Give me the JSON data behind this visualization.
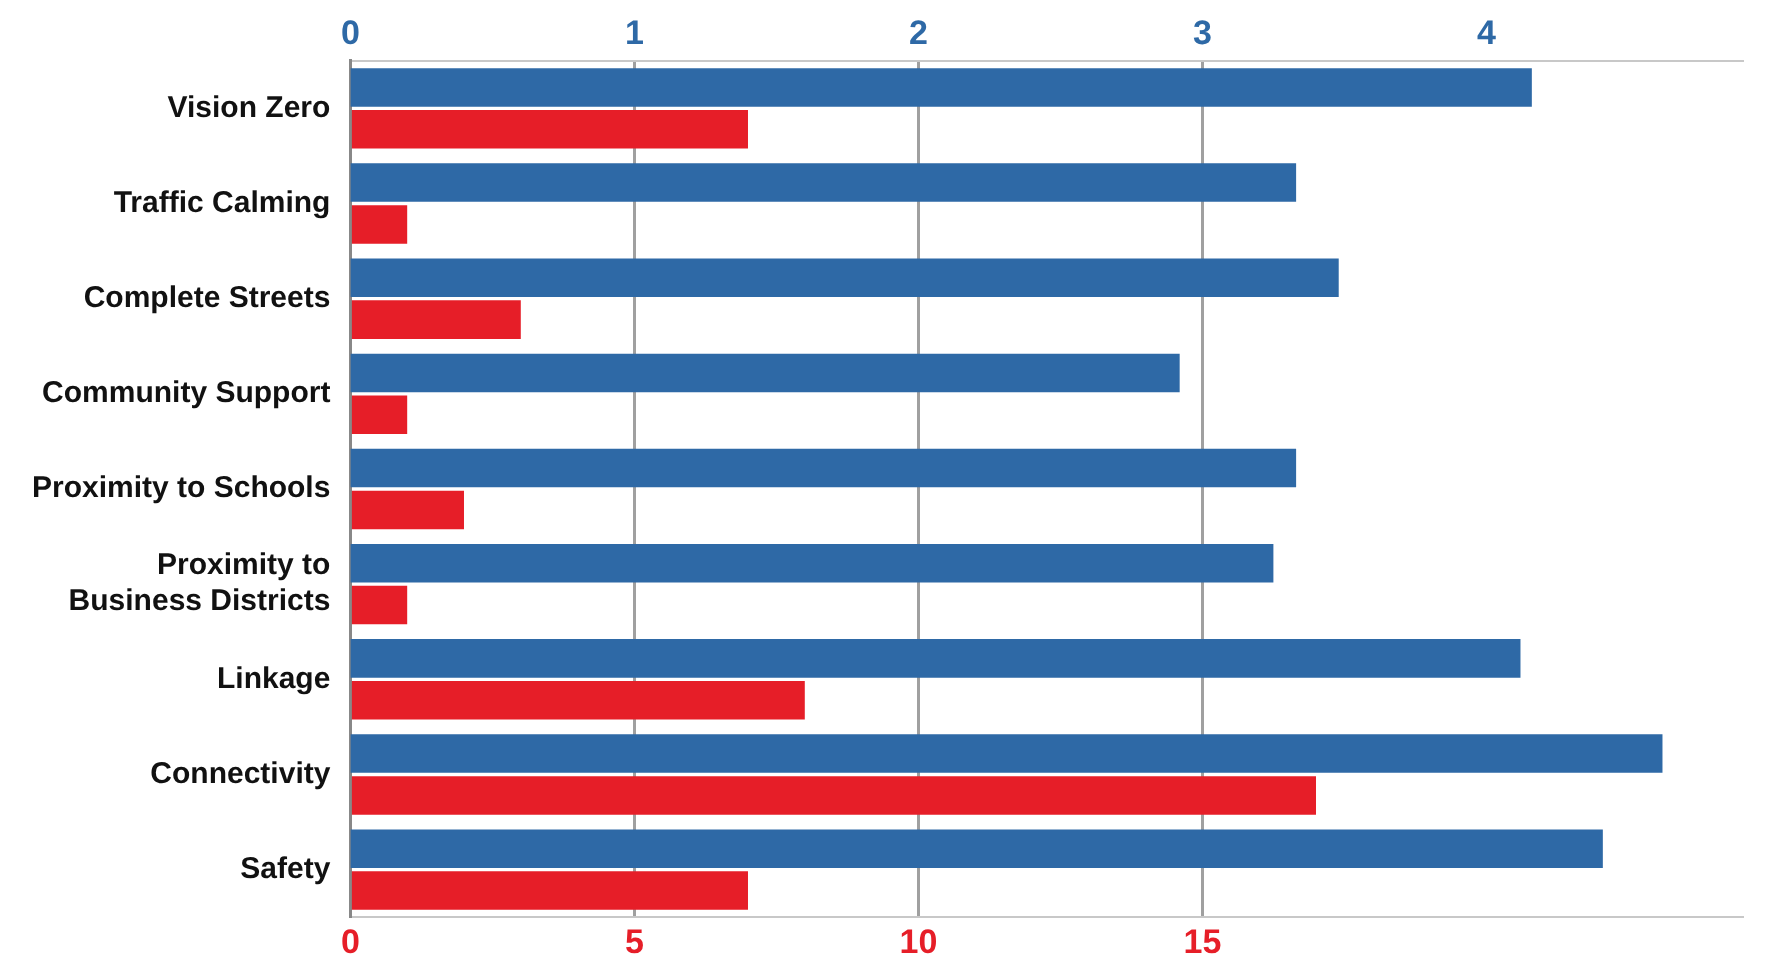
{
  "chart_data": {
    "type": "bar",
    "orientation": "horizontal",
    "categories": [
      "Vision Zero",
      "Traffic Calming",
      "Complete Streets",
      "Community Support",
      "Proximity to Schools",
      "Proximity to\nBusiness Districts",
      "Linkage",
      "Connectivity",
      "Safety"
    ],
    "series": [
      {
        "color": "#2e69a6",
        "axis": "x2",
        "values": [
          4.16,
          3.33,
          3.48,
          2.92,
          3.33,
          3.25,
          4.12,
          4.62,
          4.41
        ]
      },
      {
        "color": "#e61e28",
        "values": [
          7,
          1,
          3,
          1,
          2,
          1,
          8,
          17,
          7
        ]
      }
    ],
    "xlim": [
      0,
      24.5
    ],
    "xticks": [
      0,
      5,
      10,
      15
    ],
    "x2lim": [
      0,
      4.9
    ],
    "x2ticks": [
      0,
      1,
      2,
      3,
      4
    ],
    "grid": "x"
  }
}
